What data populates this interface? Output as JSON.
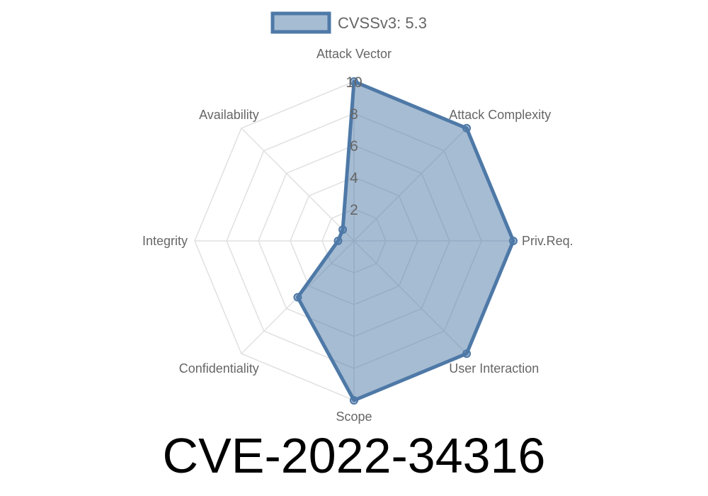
{
  "chart_data": {
    "type": "radar",
    "axes": [
      "Attack Vector",
      "Attack Complexity",
      "Priv.Req.",
      "User Interaction",
      "Scope",
      "Confidentiality",
      "Integrity",
      "Availability"
    ],
    "series": [
      {
        "name": "CVSSv3: 5.3",
        "values": [
          10,
          10,
          10,
          10,
          10,
          5,
          1,
          1
        ],
        "color": "#4e79a7",
        "fill": "rgba(78,121,167,0.5)"
      }
    ],
    "range": [
      0,
      10
    ],
    "ticks": [
      "2",
      "4",
      "6",
      "8",
      "10"
    ],
    "grid": true,
    "legend_position": "top"
  },
  "title": "CVE-2022-34316"
}
